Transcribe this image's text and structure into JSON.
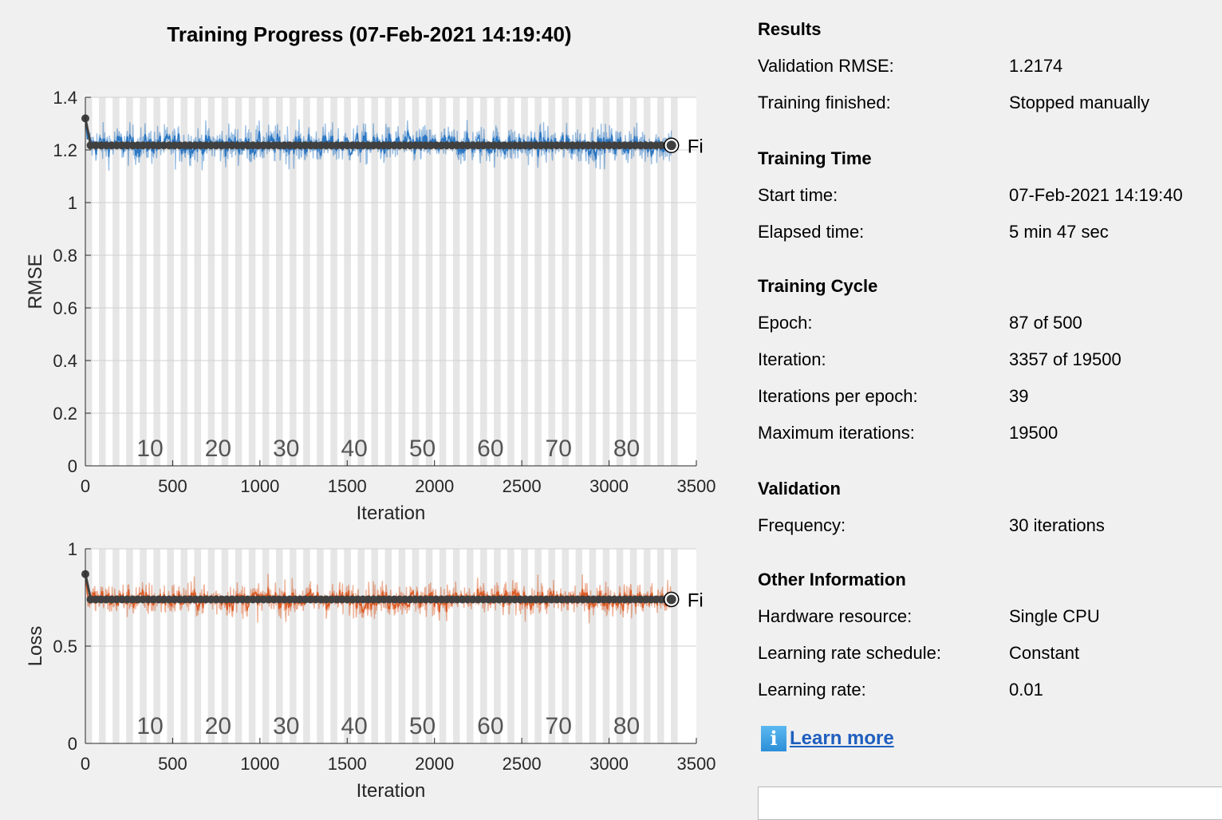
{
  "title": "Training Progress (07-Feb-2021 14:19:40)",
  "colors": {
    "rmse_series": "#1f6fbf",
    "loss_series": "#d95319",
    "final_line": "#404040",
    "link": "#1f5fbf"
  },
  "chart_data": [
    {
      "type": "line",
      "ylabel": "RMSE",
      "xlabel": "Iteration",
      "xlim": [
        0,
        3500
      ],
      "ylim": [
        0,
        1.4
      ],
      "xticks": [
        "0",
        "500",
        "1000",
        "1500",
        "2000",
        "2500",
        "3000",
        "3500"
      ],
      "yticks": [
        "0",
        "0.2",
        "0.4",
        "0.6",
        "0.8",
        "1",
        "1.2",
        "1.4"
      ],
      "epoch_labels": [
        "10",
        "20",
        "30",
        "40",
        "50",
        "60",
        "70",
        "80"
      ],
      "epoch_bands": 87,
      "iterations_per_epoch": 39,
      "final_label": "Fina",
      "series": [
        {
          "values_description": "noisy training RMSE",
          "start": 1.32,
          "mean": 1.22,
          "range": [
            1.05,
            1.38
          ],
          "last_iteration": 3357
        },
        {
          "name": "validation",
          "values": [
            1.2174
          ],
          "start": 1.32,
          "final": 1.2174,
          "frequency": 30
        }
      ]
    },
    {
      "type": "line",
      "ylabel": "Loss",
      "xlabel": "Iteration",
      "xlim": [
        0,
        3500
      ],
      "ylim": [
        0,
        1
      ],
      "xticks": [
        "0",
        "500",
        "1000",
        "1500",
        "2000",
        "2500",
        "3000",
        "3500"
      ],
      "yticks": [
        "0",
        "0.5",
        "1"
      ],
      "epoch_labels": [
        "10",
        "20",
        "30",
        "40",
        "50",
        "60",
        "70",
        "80"
      ],
      "epoch_bands": 87,
      "iterations_per_epoch": 39,
      "final_label": "Fina",
      "series": [
        {
          "values_description": "noisy training loss",
          "start": 0.87,
          "mean": 0.74,
          "range": [
            0.55,
            0.95
          ],
          "last_iteration": 3357
        },
        {
          "name": "validation",
          "values": [
            0.74
          ],
          "start": 0.87,
          "final": 0.74,
          "frequency": 30
        }
      ]
    }
  ],
  "results": {
    "title": "Results",
    "rows": [
      {
        "label": "Validation RMSE:",
        "value": "1.2174"
      },
      {
        "label": "Training finished:",
        "value": "Stopped manually"
      }
    ]
  },
  "training_time": {
    "title": "Training Time",
    "rows": [
      {
        "label": "Start time:",
        "value": "07-Feb-2021 14:19:40"
      },
      {
        "label": "Elapsed time:",
        "value": "5 min 47 sec"
      }
    ]
  },
  "training_cycle": {
    "title": "Training Cycle",
    "rows": [
      {
        "label": "Epoch:",
        "value": "87 of 500"
      },
      {
        "label": "Iteration:",
        "value": "3357 of 19500"
      },
      {
        "label": "Iterations per epoch:",
        "value": "39"
      },
      {
        "label": "Maximum iterations:",
        "value": "19500"
      }
    ]
  },
  "validation": {
    "title": "Validation",
    "rows": [
      {
        "label": "Frequency:",
        "value": "30 iterations"
      }
    ]
  },
  "other_info": {
    "title": "Other Information",
    "rows": [
      {
        "label": "Hardware resource:",
        "value": "Single CPU"
      },
      {
        "label": "Learning rate schedule:",
        "value": "Constant"
      },
      {
        "label": "Learning rate:",
        "value": "0.01"
      }
    ]
  },
  "learn_more": {
    "icon": "info-icon",
    "icon_glyph": "i",
    "label": "Learn more"
  }
}
